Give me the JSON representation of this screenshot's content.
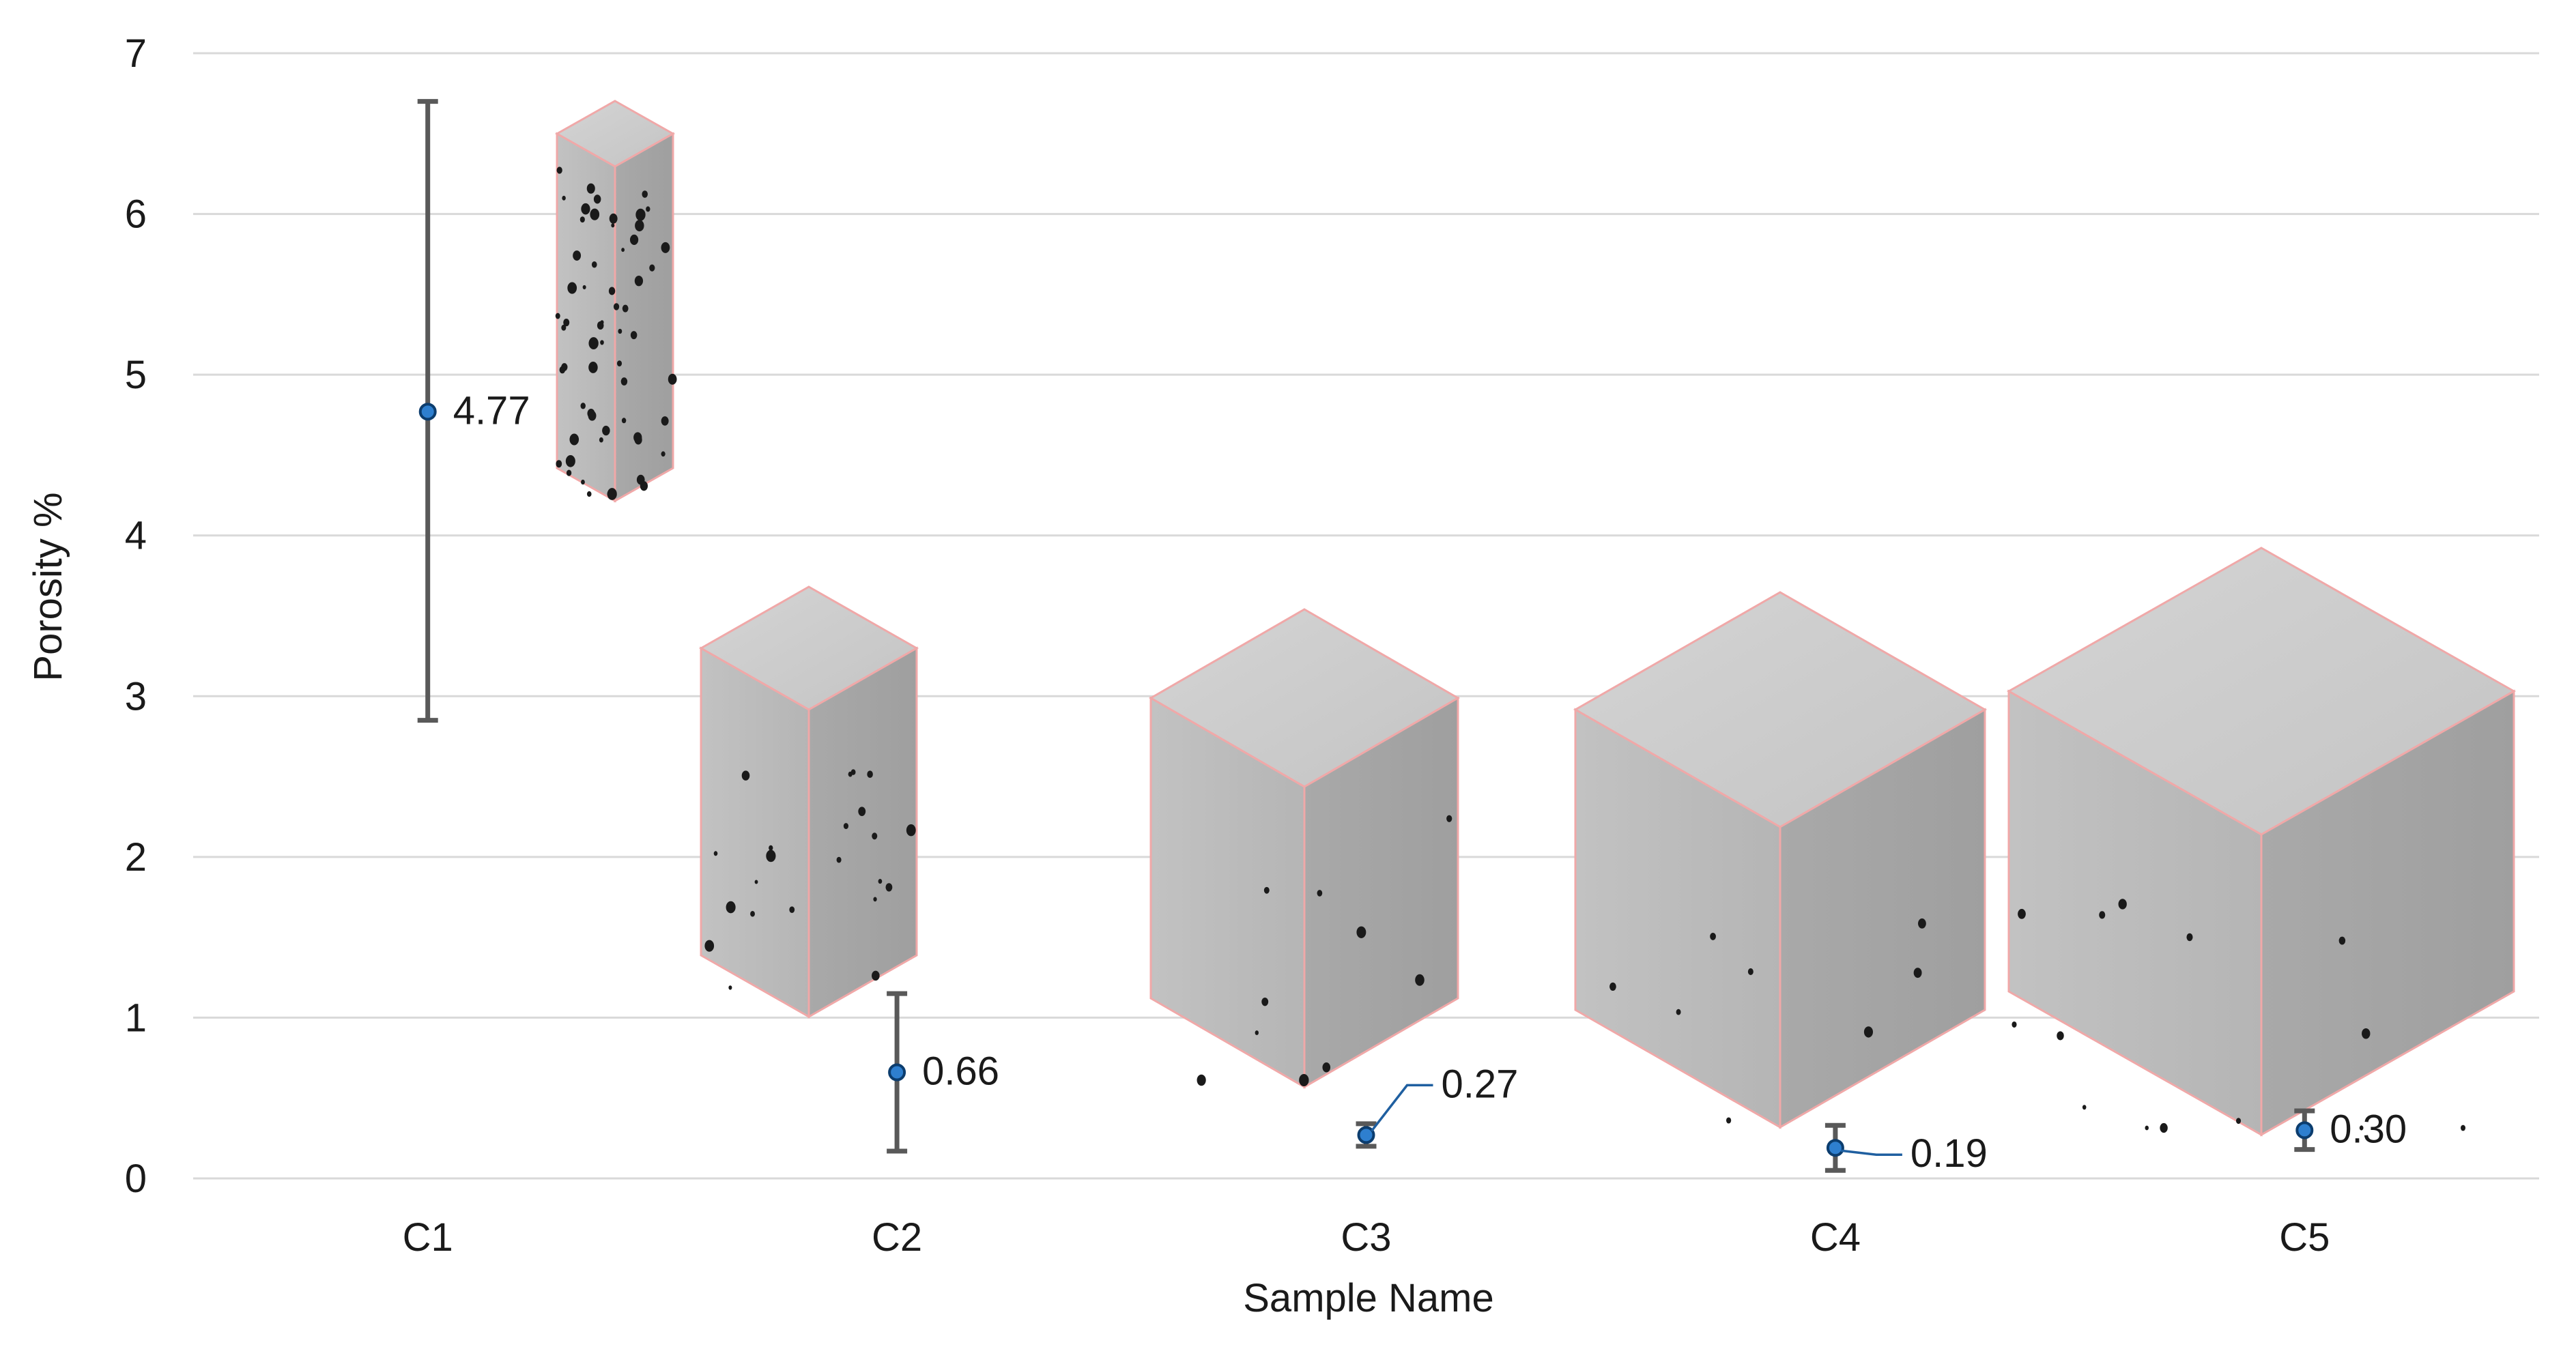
{
  "chart_data": {
    "type": "scatter",
    "xlabel": "Sample Name",
    "ylabel": "Porosity %",
    "categories": [
      "C1",
      "C2",
      "C3",
      "C4",
      "C5"
    ],
    "values": [
      4.77,
      0.66,
      0.27,
      0.19,
      0.3
    ],
    "value_labels": [
      "4.77",
      "0.66",
      "0.27",
      "0.19",
      "0.30"
    ],
    "error_low": [
      2.85,
      0.17,
      0.2,
      0.05,
      0.18
    ],
    "error_high": [
      6.7,
      1.15,
      0.34,
      0.33,
      0.42
    ],
    "ylim": [
      0,
      7
    ],
    "yticks": [
      "0",
      "1",
      "2",
      "3",
      "4",
      "5",
      "6",
      "7"
    ],
    "grid": true,
    "legend": "none",
    "colors": {
      "marker": "#2e7fcf",
      "marker_edge": "#0c3d6e",
      "error_bar": "#595959",
      "grid": "#d9d9d9",
      "leader_line": "#1f5fa0",
      "cube_face": "#b9b9b9",
      "cube_edge": "#f0a8a8"
    },
    "images": [
      "C1 CT volume",
      "C2 CT volume",
      "C3 CT volume",
      "C4 CT volume",
      "C5 CT volume"
    ]
  }
}
